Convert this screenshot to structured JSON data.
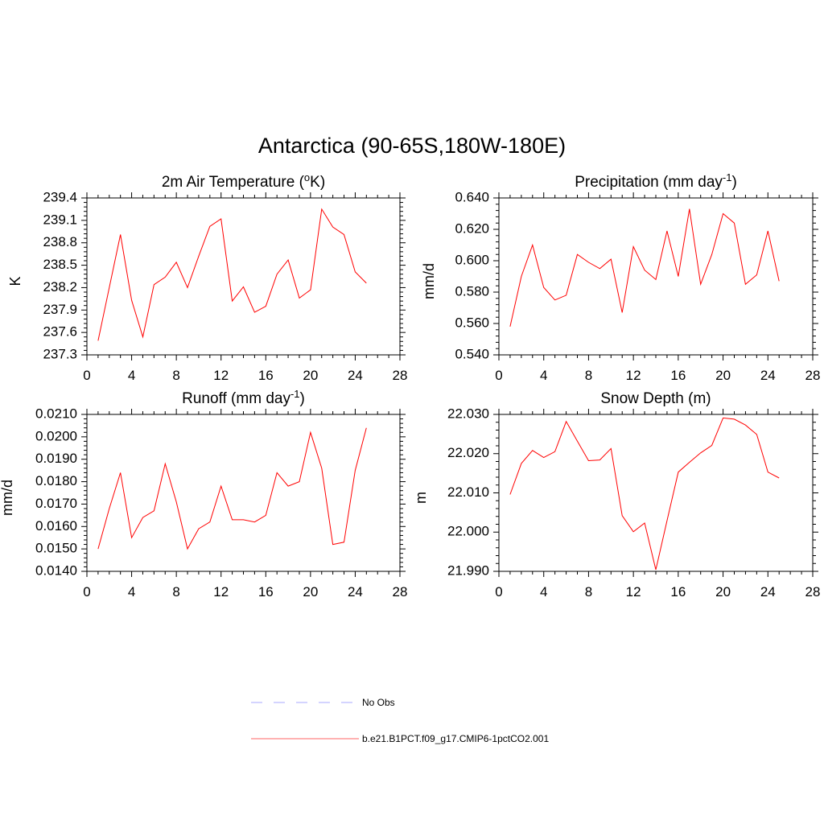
{
  "figure": {
    "title": "Antarctica (90-65S,180W-180E)"
  },
  "legend": {
    "entries": [
      {
        "label": "No Obs",
        "color": "#aaaaff",
        "style": "dashed"
      },
      {
        "label": "b.e21.B1PCT.f09_g17.CMIP6-1pctCO2.001",
        "color": "#ff6666",
        "style": "solid"
      }
    ]
  },
  "chart_data": [
    {
      "type": "line",
      "title": "2m Air Temperature (",
      "title_sup": "o",
      "title_tail": "K)",
      "xlabel": "",
      "ylabel": "K",
      "xlim": [
        0,
        28
      ],
      "ylim": [
        237.3,
        239.4
      ],
      "xticks": [
        "0",
        "4",
        "8",
        "12",
        "16",
        "20",
        "24",
        "28"
      ],
      "yticks": [
        "237.3",
        "237.6",
        "237.9",
        "238.2",
        "238.5",
        "238.8",
        "239.1",
        "239.4"
      ],
      "series": [
        {
          "color": "#ff0000",
          "x": [
            1,
            2,
            3,
            4,
            5,
            6,
            7,
            8,
            9,
            10,
            11,
            12,
            13,
            14,
            15,
            16,
            17,
            18,
            19,
            20,
            21,
            22,
            23,
            24,
            25
          ],
          "y": [
            237.49,
            238.2,
            238.91,
            238.03,
            237.54,
            238.24,
            238.34,
            238.54,
            238.2,
            238.62,
            239.02,
            239.12,
            238.02,
            238.21,
            237.87,
            237.95,
            238.38,
            238.57,
            238.06,
            238.17,
            239.25,
            239.01,
            238.91,
            238.41,
            238.26
          ]
        }
      ]
    },
    {
      "type": "line",
      "title": "Precipitation (mm day",
      "title_sup": "-1",
      "title_tail": ")",
      "xlabel": "",
      "ylabel": "mm/d",
      "xlim": [
        0,
        28
      ],
      "ylim": [
        0.54,
        0.64
      ],
      "xticks": [
        "0",
        "4",
        "8",
        "12",
        "16",
        "20",
        "24",
        "28"
      ],
      "yticks": [
        "0.540",
        "0.560",
        "0.580",
        "0.600",
        "0.620",
        "0.640"
      ],
      "series": [
        {
          "color": "#ff0000",
          "x": [
            1,
            2,
            3,
            4,
            5,
            6,
            7,
            8,
            9,
            10,
            11,
            12,
            13,
            14,
            15,
            16,
            17,
            18,
            19,
            20,
            21,
            22,
            23,
            24,
            25
          ],
          "y": [
            0.558,
            0.59,
            0.61,
            0.583,
            0.575,
            0.578,
            0.604,
            0.599,
            0.595,
            0.601,
            0.567,
            0.609,
            0.594,
            0.588,
            0.619,
            0.59,
            0.633,
            0.585,
            0.604,
            0.63,
            0.624,
            0.585,
            0.591,
            0.619,
            0.587
          ]
        }
      ]
    },
    {
      "type": "line",
      "title": "Runoff (mm day",
      "title_sup": "-1",
      "title_tail": ")",
      "xlabel": "",
      "ylabel": "mm/d",
      "xlim": [
        0,
        28
      ],
      "ylim": [
        0.014,
        0.021
      ],
      "xticks": [
        "0",
        "4",
        "8",
        "12",
        "16",
        "20",
        "24",
        "28"
      ],
      "yticks": [
        "0.0140",
        "0.0150",
        "0.0160",
        "0.0170",
        "0.0180",
        "0.0190",
        "0.0200",
        "0.0210"
      ],
      "series": [
        {
          "color": "#ff0000",
          "x": [
            1,
            2,
            3,
            4,
            5,
            6,
            7,
            8,
            9,
            10,
            11,
            12,
            13,
            14,
            15,
            16,
            17,
            18,
            19,
            20,
            21,
            22,
            23,
            24,
            25
          ],
          "y": [
            0.015,
            0.0168,
            0.0184,
            0.0155,
            0.0164,
            0.0167,
            0.0188,
            0.0171,
            0.015,
            0.0159,
            0.0162,
            0.0178,
            0.0163,
            0.0163,
            0.0162,
            0.0165,
            0.0184,
            0.0178,
            0.018,
            0.0202,
            0.0186,
            0.0152,
            0.0153,
            0.0185,
            0.0204
          ]
        }
      ]
    },
    {
      "type": "line",
      "title": "Snow Depth (m)",
      "title_sup": "",
      "title_tail": "",
      "xlabel": "",
      "ylabel": "m",
      "xlim": [
        0,
        28
      ],
      "ylim": [
        21.99,
        22.03
      ],
      "xticks": [
        "0",
        "4",
        "8",
        "12",
        "16",
        "20",
        "24",
        "28"
      ],
      "yticks": [
        "21.990",
        "22.000",
        "22.010",
        "22.020",
        "22.030"
      ],
      "series": [
        {
          "color": "#ff0000",
          "x": [
            1,
            2,
            3,
            4,
            5,
            6,
            7,
            8,
            9,
            10,
            11,
            12,
            13,
            14,
            15,
            16,
            17,
            18,
            19,
            20,
            21,
            22,
            23,
            24,
            25
          ],
          "y": [
            22.0096,
            22.0175,
            22.0208,
            22.019,
            22.0205,
            22.0282,
            22.0232,
            22.0182,
            22.0184,
            22.0213,
            22.0042,
            22.0001,
            22.0023,
            21.9904,
            22.0029,
            22.0153,
            22.0178,
            22.0202,
            22.0221,
            22.0291,
            22.0288,
            22.0273,
            22.0249,
            22.0153,
            22.0138
          ]
        }
      ]
    }
  ]
}
